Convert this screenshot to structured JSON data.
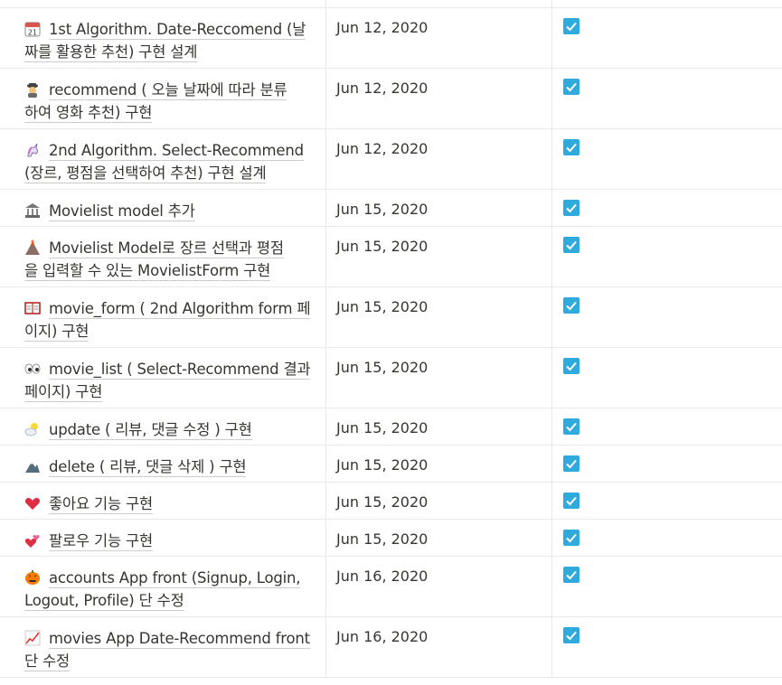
{
  "rows": [
    {
      "icon": "calendar-icon",
      "title": "1st Algorithm. Date-Reccomend (날짜를 활용한 추천) 구현 설계",
      "date": "Jun 12, 2020",
      "done": true,
      "lines": [
        "1st Algorithm. Date-Reccomend (날",
        "짜를 활용한 추천) 구현 설계"
      ]
    },
    {
      "icon": "detective-icon",
      "title": "recommend ( 오늘 날짜에 따라 분류하여 영화 추천) 구현",
      "date": "Jun 12, 2020",
      "done": true,
      "lines": [
        "recommend ( 오늘 날짜에 따라 분류",
        "하여 영화 추천) 구현"
      ]
    },
    {
      "icon": "unicorn-icon",
      "title": "2nd Algorithm. Select-Recommend (장르, 평점을 선택하여 추천) 구현 설계",
      "date": "Jun 12, 2020",
      "done": true,
      "lines": [
        "2nd Algorithm. Select-Recommend",
        "(장르, 평점을 선택하여 추천) 구현 설계"
      ]
    },
    {
      "icon": "classical-building-icon",
      "title": "Movielist model 추가",
      "date": "Jun 15, 2020",
      "done": true,
      "lines": [
        "Movielist model 추가"
      ]
    },
    {
      "icon": "volcano-icon",
      "title": "Movielist Model로 장르 선택과 평점을 입력할 수 있는 MovielistForm 구현",
      "date": "Jun 15, 2020",
      "done": true,
      "lines": [
        "Movielist Model로 장르 선택과 평점",
        "을 입력할 수 있는 MovielistForm 구현"
      ]
    },
    {
      "icon": "book-icon",
      "title": "movie_form ( 2nd Algorithm form 페이지) 구현",
      "date": "Jun 15, 2020",
      "done": true,
      "lines": [
        "movie_form ( 2nd Algorithm form 페",
        "이지) 구현"
      ]
    },
    {
      "icon": "eyes-icon",
      "title": "movie_list ( Select-Recommend 결과 페이지) 구현",
      "date": "Jun 15, 2020",
      "done": true,
      "lines": [
        "movie_list ( Select-Recommend 결과",
        "페이지) 구현"
      ]
    },
    {
      "icon": "sun-behind-cloud-icon",
      "title": "update ( 리뷰, 댓글 수정 ) 구현",
      "date": "Jun 15, 2020",
      "done": true,
      "lines": [
        "update ( 리뷰, 댓글 수정 ) 구현"
      ]
    },
    {
      "icon": "mountain-icon",
      "title": "delete ( 리뷰, 댓글 삭제 ) 구현",
      "date": "Jun 15, 2020",
      "done": true,
      "lines": [
        "delete ( 리뷰, 댓글 삭제 ) 구현"
      ]
    },
    {
      "icon": "red-heart-icon",
      "title": "좋아요 기능 구현",
      "date": "Jun 15, 2020",
      "done": true,
      "lines": [
        "좋아요 기능 구현"
      ]
    },
    {
      "icon": "two-hearts-icon",
      "title": "팔로우 기능 구현",
      "date": "Jun 15, 2020",
      "done": true,
      "lines": [
        "팔로우 기능 구현"
      ]
    },
    {
      "icon": "jack-o-lantern-icon",
      "title": "accounts App front (Signup, Login, Logout, Profile) 단 수정",
      "date": "Jun 16, 2020",
      "done": true,
      "lines": [
        "accounts App front (Signup, Login,",
        "Logout, Profile) 단 수정"
      ]
    },
    {
      "icon": "chart-increasing-icon",
      "title": "movies App Date-Recommend front 단 수정",
      "date": "Jun 16, 2020",
      "done": true,
      "lines": [
        "movies App Date-Recommend front",
        "단 수정"
      ]
    }
  ]
}
